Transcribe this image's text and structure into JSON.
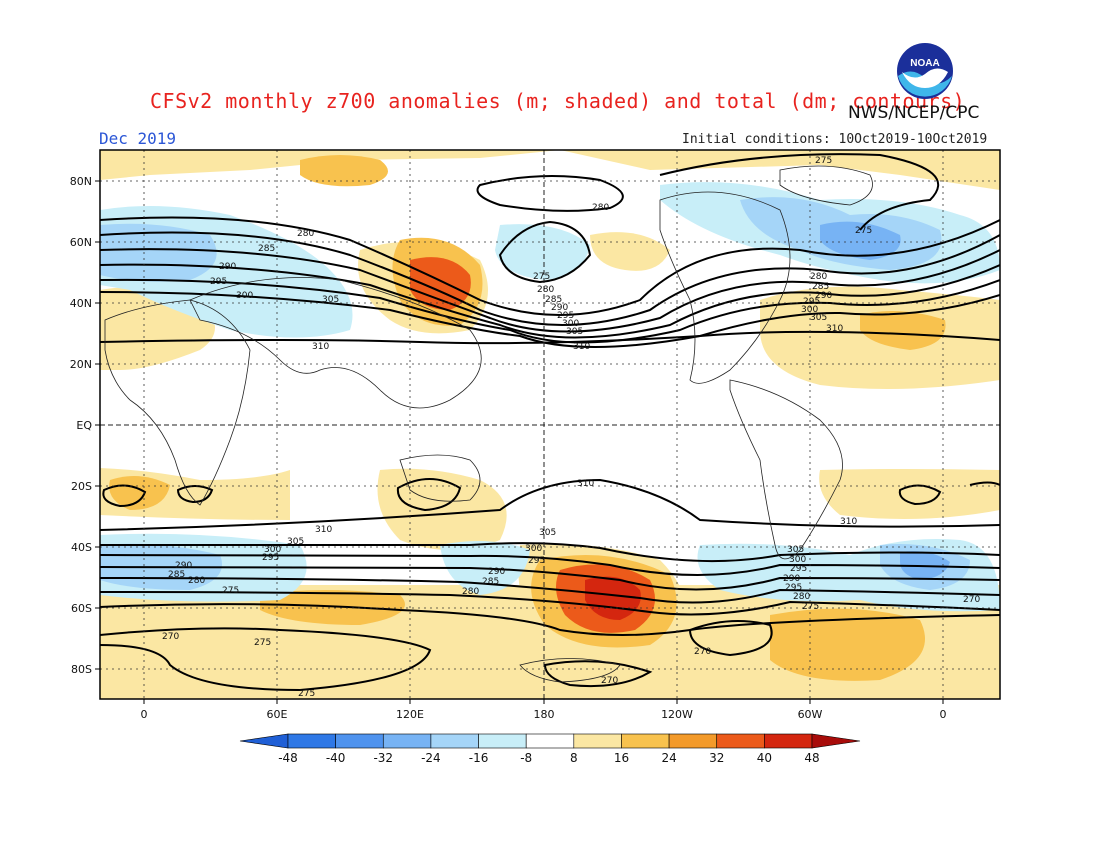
{
  "header": {
    "title": "CFSv2 monthly z700 anomalies (m; shaded) and total (dm; contours)",
    "agency": "NWS/NCEP/CPC",
    "month": "Dec 2019",
    "initial_conditions": "Initial conditions: 10Oct2019-10Oct2019",
    "logo_text": "NOAA"
  },
  "axes": {
    "lat_labels": [
      "80N",
      "60N",
      "40N",
      "20N",
      "EQ",
      "20S",
      "40S",
      "60S",
      "80S"
    ],
    "lon_labels": [
      "0",
      "60E",
      "120E",
      "180",
      "120W",
      "60W",
      "0"
    ]
  },
  "contour_labels": [
    "270",
    "275",
    "280",
    "285",
    "290",
    "295",
    "300",
    "305",
    "310"
  ],
  "colorbar": {
    "ticks": [
      "-48",
      "-40",
      "-32",
      "-24",
      "-16",
      "-8",
      "8",
      "16",
      "24",
      "32",
      "40",
      "48"
    ],
    "colors": [
      "#1f5fd6",
      "#2f78e6",
      "#4f93ee",
      "#77b3f4",
      "#a5d5f8",
      "#c8eef8",
      "#ffffff",
      "#fbe7a3",
      "#f8c24e",
      "#f39a2a",
      "#ec5a1a",
      "#d4260f",
      "#a80c0a"
    ]
  }
}
